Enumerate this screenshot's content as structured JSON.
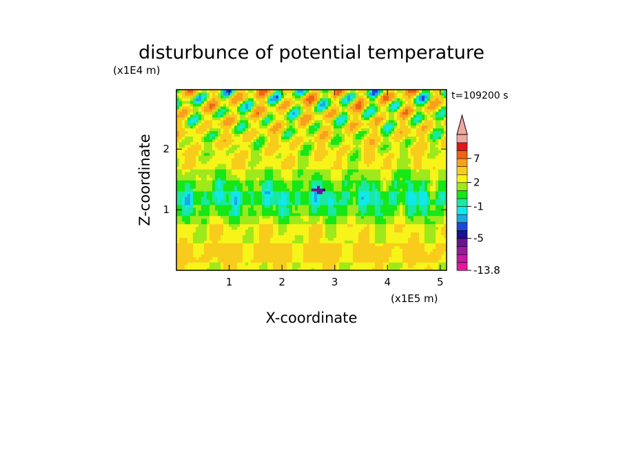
{
  "chart_data": {
    "type": "heatmap",
    "title": "disturbunce of potential temperature",
    "time_label": "t=109200 s",
    "xlabel": "X-coordinate",
    "ylabel": "Z-coordinate",
    "x_unit": "(x1E5 m)",
    "y_unit": "(x1E4 m)",
    "xlim": [
      0,
      5.12
    ],
    "ylim": [
      0,
      2.98
    ],
    "x_ticks": [
      1,
      2,
      3,
      4,
      5
    ],
    "y_ticks": [
      1,
      2
    ],
    "colorbar": {
      "levels": [
        -13.8,
        -11,
        -9,
        -7,
        -5,
        -4,
        -3,
        -2,
        -1,
        0,
        1,
        2,
        3,
        5,
        7,
        9,
        11
      ],
      "labels": [
        "7",
        "2",
        "-1",
        "-5",
        "-13.8"
      ],
      "label_values": [
        7,
        2,
        -1,
        -5,
        -13.8
      ],
      "colors": [
        "#e2179d",
        "#c21aa0",
        "#9a1a9c",
        "#6a1494",
        "#1a1290",
        "#1b4ad8",
        "#1fa6e4",
        "#12e8e8",
        "#19e8a0",
        "#16e716",
        "#9ee81c",
        "#f6f418",
        "#f8cc1c",
        "#f8a01c",
        "#f06410",
        "#e01818",
        "#f2a6a0"
      ],
      "extend": "max"
    },
    "field_description_bands": [
      {
        "z": [
          0.0,
          0.12
        ],
        "value": 2.5
      },
      {
        "z": [
          0.12,
          0.45
        ],
        "value": 3.5
      },
      {
        "z": [
          0.45,
          0.75
        ],
        "value": 2.5
      },
      {
        "z": [
          0.75,
          0.9
        ],
        "value": 1.5
      },
      {
        "z": [
          0.9,
          1.1
        ],
        "value": 0.5
      },
      {
        "z": [
          1.1,
          1.3
        ],
        "value": -0.5
      },
      {
        "z": [
          1.3,
          1.5
        ],
        "value": 0.5
      },
      {
        "z": [
          1.5,
          1.65
        ],
        "value": 1.5
      },
      {
        "z": [
          1.65,
          1.85
        ],
        "value": 2.5
      },
      {
        "z": [
          1.85,
          2.98
        ],
        "value": 2.5
      }
    ]
  }
}
